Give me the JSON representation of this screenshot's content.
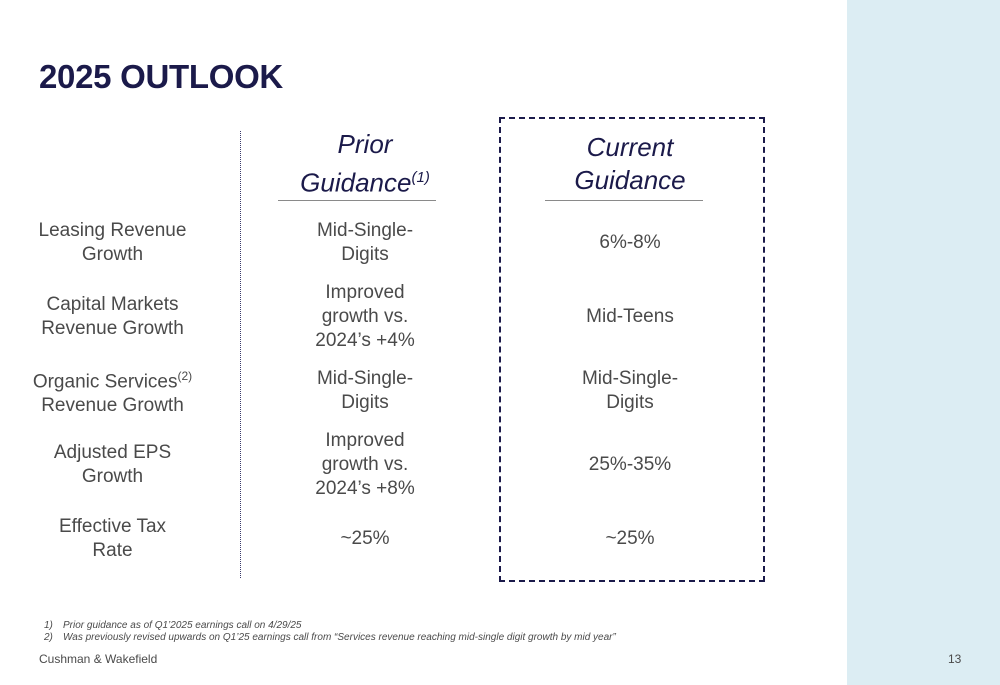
{
  "slide": {
    "title": "2025 OUTLOOK",
    "prior_heading": {
      "text": "Prior Guidance",
      "line1": "Prior",
      "line2": "Guidance",
      "superscript": "(1)"
    },
    "current_heading": {
      "line1": "Current",
      "line2": "Guidance"
    },
    "rows": [
      {
        "label": "Leasing Revenue\nGrowth",
        "label_sup": "",
        "label_line2": "",
        "prior": "Mid-Single-\nDigits",
        "current": "6%-8%"
      },
      {
        "label": "Capital Markets\nRevenue Growth",
        "label_sup": "",
        "label_line2": "",
        "prior": "Improved\ngrowth vs.\n2024’s +4%",
        "current": "Mid-Teens"
      },
      {
        "label": "Organic Services",
        "label_sup": "(2)",
        "label_line2": "Revenue Growth",
        "prior": "Mid-Single-\nDigits",
        "current": "Mid-Single-\nDigits"
      },
      {
        "label": "Adjusted EPS\nGrowth",
        "label_sup": "",
        "label_line2": "",
        "prior": "Improved\ngrowth vs.\n2024’s +8%",
        "current": "25%-35%"
      },
      {
        "label": "Effective Tax\nRate",
        "label_sup": "",
        "label_line2": "",
        "prior": "~25%",
        "current": "~25%"
      }
    ],
    "footnotes": [
      {
        "num": "1)",
        "text": "Prior guidance as of Q1’2025 earnings call on 4/29/25"
      },
      {
        "num": "2)",
        "text": "Was previously revised upwards on Q1’25 earnings call from “Services revenue reaching mid-single digit growth by mid year”"
      }
    ],
    "footer_brand": "Cushman & Wakefield",
    "page_number": "13"
  },
  "colors": {
    "title": "#1b1a4a",
    "body_text": "#4a4a4a",
    "side_panel": "#dcedf3",
    "box_border": "#1b1a4a"
  }
}
